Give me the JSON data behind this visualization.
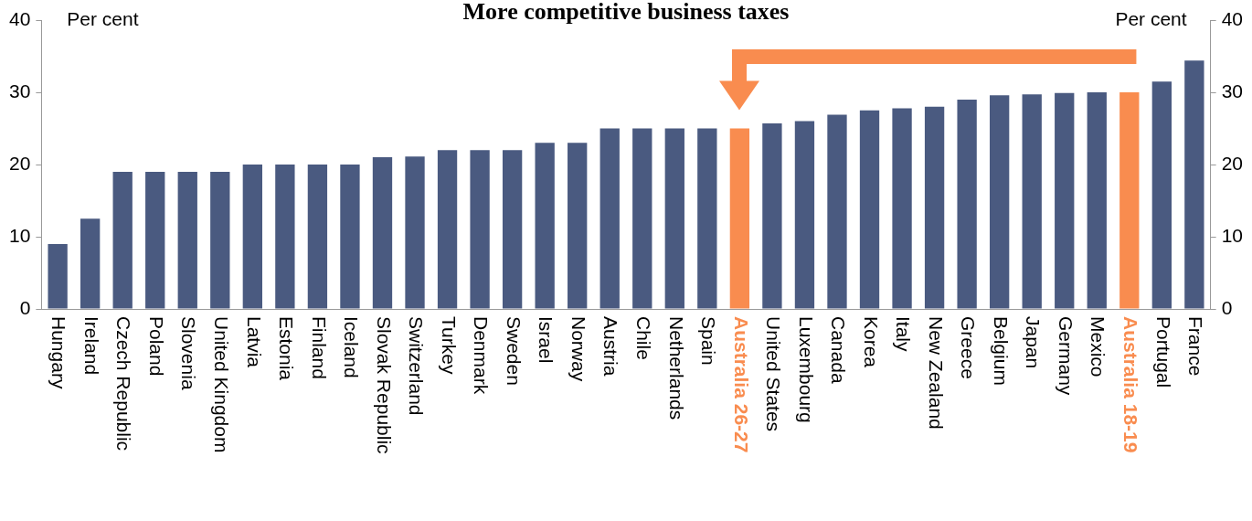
{
  "chart_data": {
    "type": "bar",
    "title": "More competitive business taxes",
    "ylabel": "Per cent",
    "y2label": "Per cent",
    "categories": [
      "Hungary",
      "Ireland",
      "Czech Republic",
      "Poland",
      "Slovenia",
      "United Kingdom",
      "Latvia",
      "Estonia",
      "Finland",
      "Iceland",
      "Slovak Republic",
      "Switzerland",
      "Turkey",
      "Denmark",
      "Sweden",
      "Israel",
      "Norway",
      "Austria",
      "Chile",
      "Netherlands",
      "Spain",
      "Australia 26-27",
      "United States",
      "Luxembourg",
      "Canada",
      "Korea",
      "Italy",
      "New Zealand",
      "Greece",
      "Belgium",
      "Japan",
      "Germany",
      "Mexico",
      "Australia 18-19",
      "Portugal",
      "France"
    ],
    "values": [
      9,
      12.5,
      19,
      19,
      19,
      19,
      20,
      20,
      20,
      20,
      21,
      21.1,
      22,
      22,
      22,
      23,
      23,
      25,
      25,
      25,
      25,
      25,
      25.7,
      26,
      26.9,
      27.5,
      27.8,
      28,
      29,
      29.6,
      29.7,
      29.9,
      30,
      30,
      31.5,
      34.4
    ],
    "color": "#4a5a80",
    "colors": [
      "#4a5a80",
      "#4a5a80",
      "#4a5a80",
      "#4a5a80",
      "#4a5a80",
      "#4a5a80",
      "#4a5a80",
      "#4a5a80",
      "#4a5a80",
      "#4a5a80",
      "#4a5a80",
      "#4a5a80",
      "#4a5a80",
      "#4a5a80",
      "#4a5a80",
      "#4a5a80",
      "#4a5a80",
      "#4a5a80",
      "#4a5a80",
      "#4a5a80",
      "#4a5a80",
      "#f98c4f",
      "#4a5a80",
      "#4a5a80",
      "#4a5a80",
      "#4a5a80",
      "#4a5a80",
      "#4a5a80",
      "#4a5a80",
      "#4a5a80",
      "#4a5a80",
      "#4a5a80",
      "#4a5a80",
      "#f98c4f",
      "#4a5a80",
      "#4a5a80"
    ],
    "ylim": [
      0,
      40
    ],
    "yticks": [
      0,
      10,
      20,
      30,
      40
    ],
    "y2lim": [
      0,
      40
    ],
    "y2ticks": [
      0,
      10,
      20,
      30,
      40
    ],
    "grid": false,
    "legend": false
  }
}
